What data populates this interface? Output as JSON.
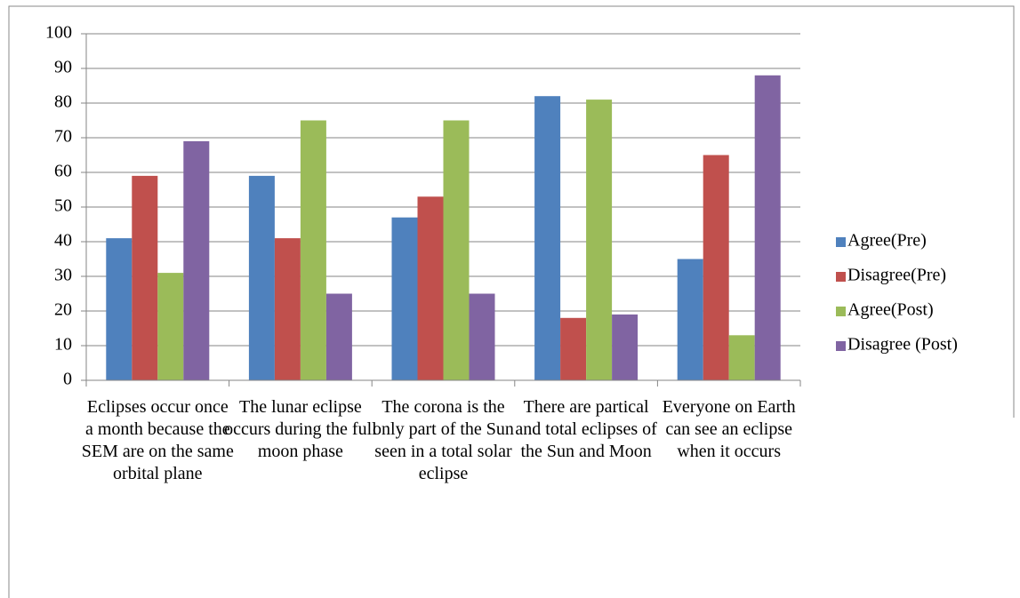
{
  "chart_data": {
    "type": "bar",
    "categories": [
      "Eclipses occur once a month because the SEM are on the same orbital plane",
      "The lunar eclipse occurs during the full moon phase",
      "The corona is the only part of the Sun seen in a total solar eclipse",
      "There are partical and total eclipses of the Sun and Moon",
      "Everyone on Earth can see an eclipse when it occurs"
    ],
    "series": [
      {
        "name": "Agree(Pre)",
        "color": "#4f81bd",
        "values": [
          41,
          59,
          47,
          82,
          35
        ]
      },
      {
        "name": "Disagree(Pre)",
        "color": "#c0504d",
        "values": [
          59,
          41,
          53,
          18,
          65
        ]
      },
      {
        "name": "Agree(Post)",
        "color": "#9bbb59",
        "values": [
          31,
          75,
          75,
          81,
          13
        ]
      },
      {
        "name": "Disagree (Post)",
        "color": "#8064a2",
        "values": [
          69,
          25,
          25,
          19,
          88
        ]
      }
    ],
    "ylim": [
      0,
      100
    ],
    "yticks": [
      0,
      10,
      20,
      30,
      40,
      50,
      60,
      70,
      80,
      90,
      100
    ],
    "grid": true,
    "legend": "right"
  }
}
